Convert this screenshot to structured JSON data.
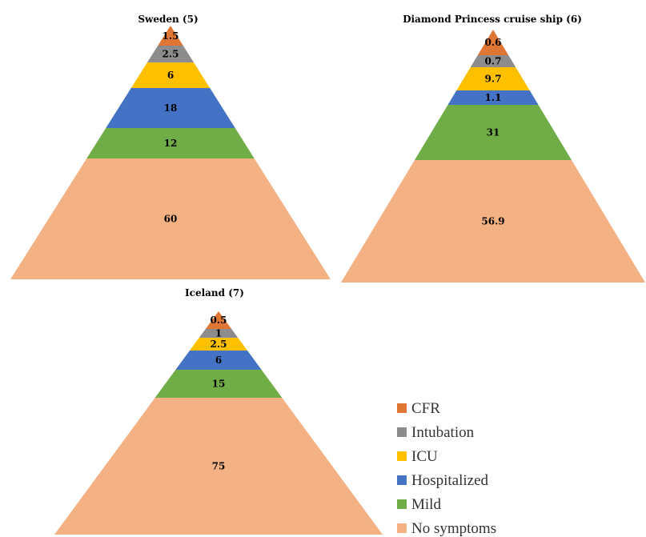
{
  "legend": [
    {
      "label": "CFR",
      "color": "#E07633"
    },
    {
      "label": "Intubation",
      "color": "#8C8C8C"
    },
    {
      "label": "ICU",
      "color": "#FFC000"
    },
    {
      "label": "Hospitalized",
      "color": "#4472C4"
    },
    {
      "label": "Mild",
      "color": "#70AD47"
    },
    {
      "label": "No symptoms",
      "color": "#F4B183"
    }
  ],
  "chart_data": [
    {
      "type": "pyramid",
      "title": "Sweden (5)",
      "categories": [
        "CFR",
        "Intubation",
        "ICU",
        "Hospitalized",
        "Mild",
        "No symptoms"
      ],
      "values": [
        1.5,
        2.5,
        6,
        18,
        12,
        60
      ],
      "labels": [
        "1.5",
        "2.5",
        "6",
        "18",
        "12",
        "60"
      ]
    },
    {
      "type": "pyramid",
      "title": "Diamond Princess cruise ship (6)",
      "categories": [
        "CFR",
        "Intubation",
        "ICU",
        "Hospitalized",
        "Mild",
        "No symptoms"
      ],
      "values": [
        0.6,
        0.7,
        9.7,
        1.1,
        31,
        56.9
      ],
      "labels": [
        "0.6",
        "0.7",
        "9.7",
        "1.1",
        "31",
        "56.9"
      ]
    },
    {
      "type": "pyramid",
      "title": "Iceland (7)",
      "categories": [
        "CFR",
        "Intubation",
        "ICU",
        "Hospitalized",
        "Mild",
        "No symptoms"
      ],
      "values": [
        0.5,
        1,
        2.5,
        6,
        15,
        75
      ],
      "labels": [
        "0.5",
        "1",
        "2.5",
        "6",
        "15",
        "75"
      ]
    }
  ]
}
